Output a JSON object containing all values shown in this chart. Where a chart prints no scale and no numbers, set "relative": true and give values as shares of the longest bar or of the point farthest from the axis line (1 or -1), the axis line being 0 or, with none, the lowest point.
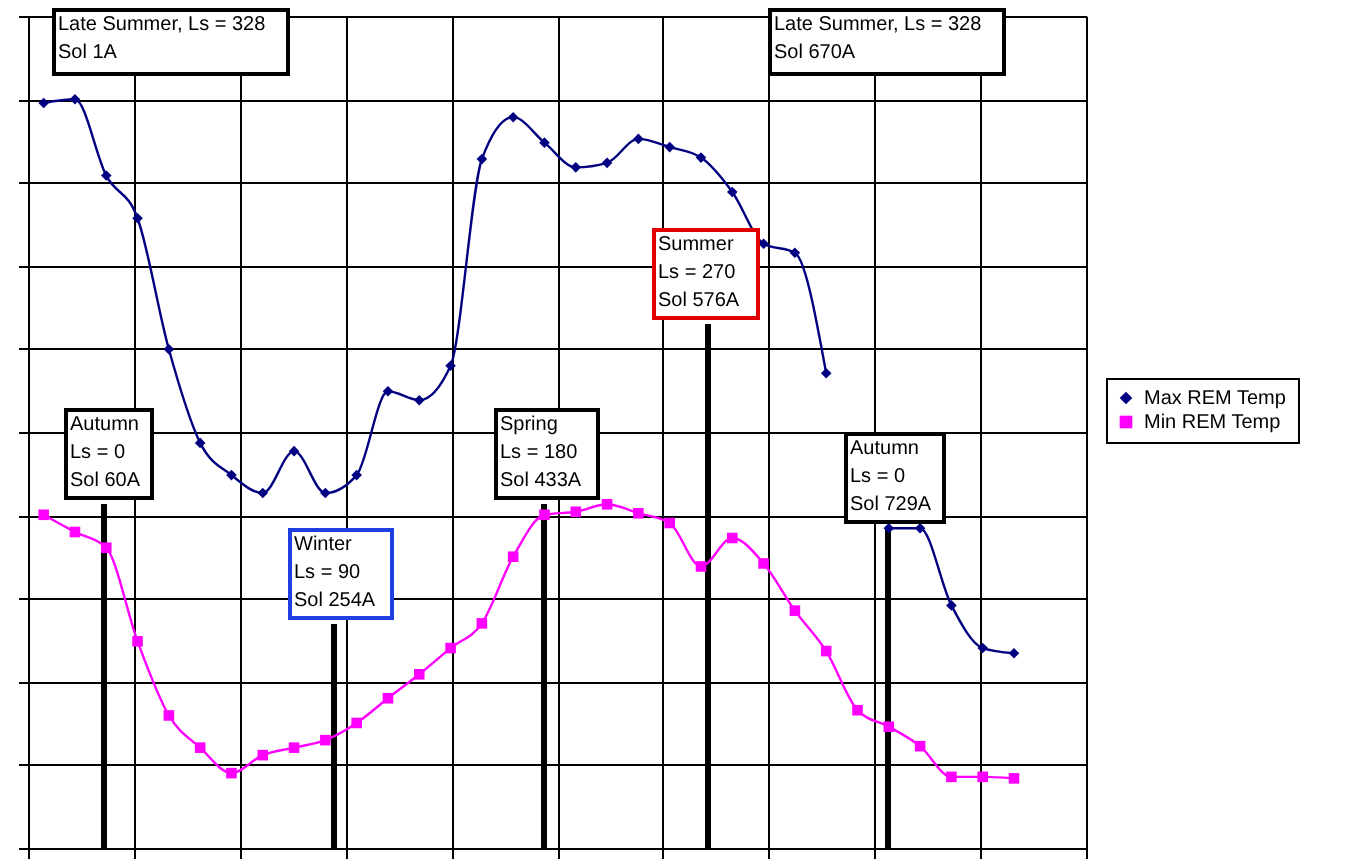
{
  "chart_data": {
    "type": "line",
    "relative": true,
    "categories": [
      null,
      null,
      null,
      null,
      null,
      null,
      null,
      null,
      null,
      null,
      null,
      null,
      null,
      null,
      null,
      null,
      null,
      null,
      null,
      null,
      null,
      null,
      null,
      null,
      null,
      null,
      null,
      null,
      null,
      null,
      null,
      null
    ],
    "series": [
      {
        "name": "Max REM Temp",
        "color": "#000080",
        "marker": "diamond",
        "values": [
          0.995,
          1.0,
          0.898,
          0.841,
          0.666,
          0.541,
          0.498,
          0.474,
          0.53,
          0.474,
          0.498,
          0.61,
          0.598,
          0.644,
          0.92,
          0.976,
          0.942,
          0.909,
          0.915,
          0.947,
          0.936,
          0.922,
          0.876,
          0.807,
          0.795,
          0.634,
          null,
          0.427,
          0.427,
          0.324,
          0.267,
          0.26
        ]
      },
      {
        "name": "Min REM Temp",
        "color": "#ff00ff",
        "marker": "square",
        "values": [
          0.445,
          0.422,
          0.401,
          0.276,
          0.177,
          0.134,
          0.1,
          0.124,
          0.134,
          0.144,
          0.167,
          0.2,
          0.232,
          0.267,
          0.3,
          0.389,
          0.445,
          0.449,
          0.459,
          0.447,
          0.434,
          0.376,
          0.414,
          0.38,
          0.317,
          0.263,
          0.184,
          0.162,
          0.136,
          0.095,
          0.095,
          0.093
        ]
      }
    ],
    "annotations": [
      "Late Summer, Ls = 328\nSol 1A",
      "Autumn\nLs = 0\nSol 60A",
      "Winter\nLs = 90\nSol 254A",
      "Spring\nLs = 180\nSol 433A",
      "Summer\nLs = 270\nSol 576A",
      "Late Summer, Ls = 328\nSol 670A",
      "Autumn\nLs = 0\nSol 729A"
    ],
    "grid": true,
    "legend": "right",
    "line_style": "solid"
  }
}
